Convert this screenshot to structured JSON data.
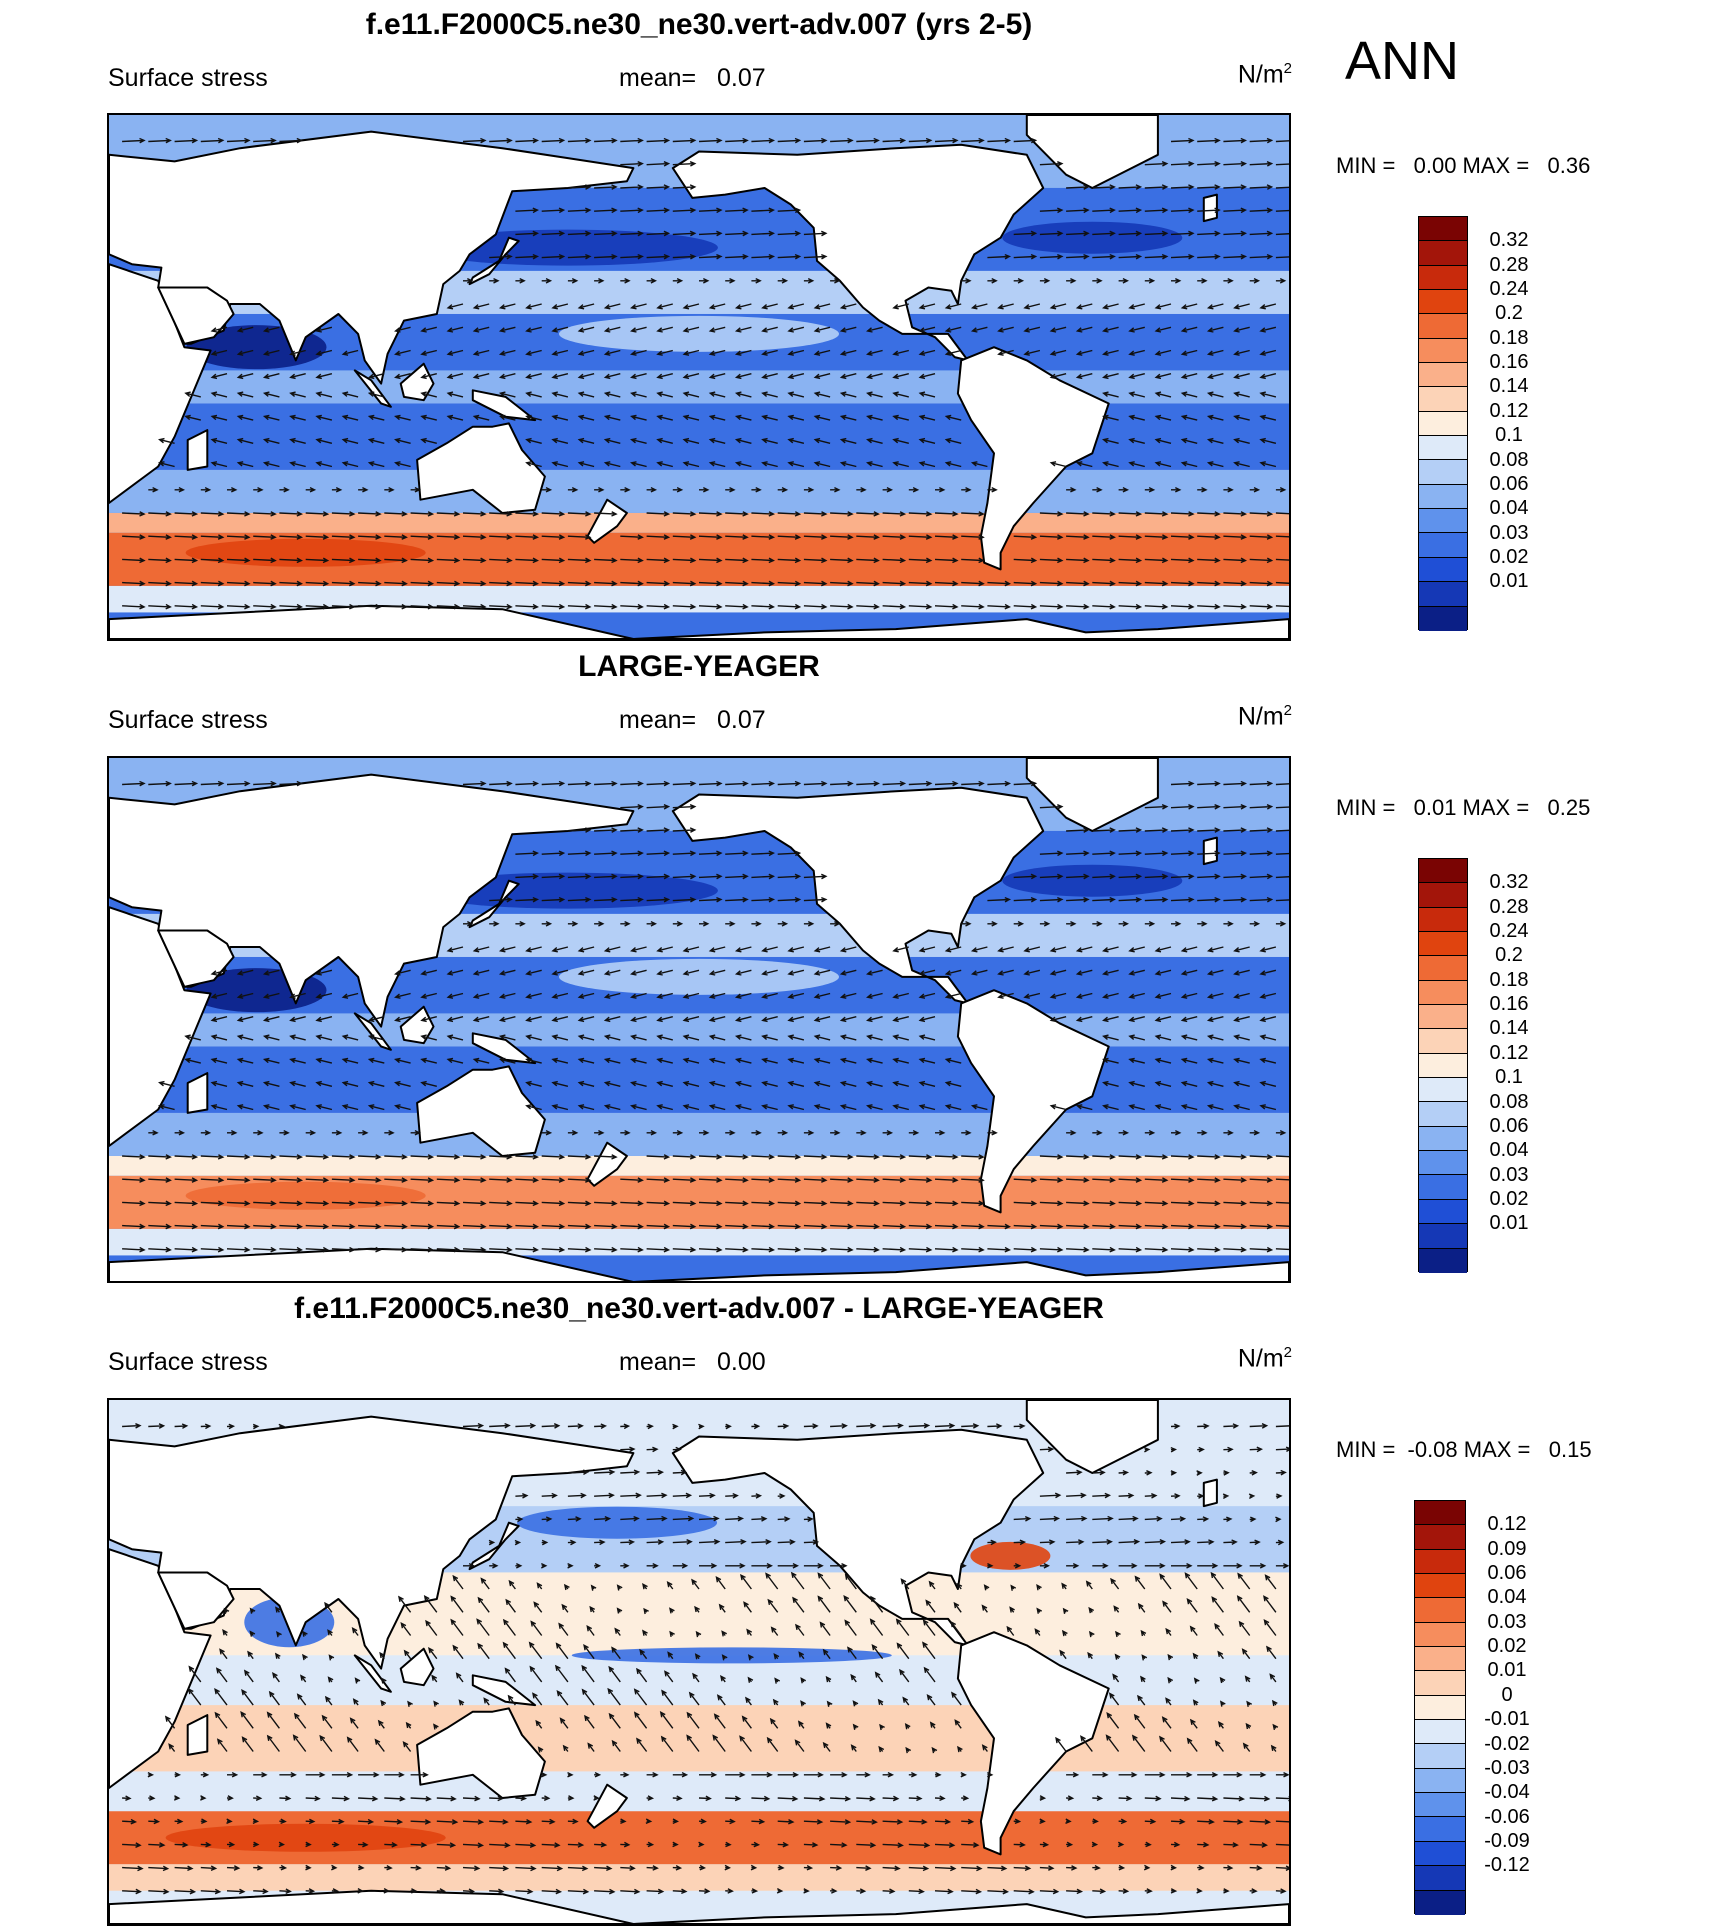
{
  "season": "ANN",
  "panels": [
    {
      "id": "model",
      "title": "f.e11.F2000C5.ne30_ne30.vert-adv.007 (yrs 2-5)",
      "left_label": "Surface stress",
      "mean_text": "mean=   0.07",
      "units_base": "N/m",
      "units_exp": "2",
      "minmax_text": "MIN =   0.00 MAX =   0.36",
      "colorbar": {
        "labels": [
          "0.32",
          "0.28",
          "0.24",
          "0.2",
          "0.18",
          "0.16",
          "0.14",
          "0.12",
          "0.1",
          "0.08",
          "0.06",
          "0.04",
          "0.03",
          "0.02",
          "0.01"
        ],
        "colors": [
          "#7a0403",
          "#a3150a",
          "#c82a0c",
          "#e0440f",
          "#ee6a35",
          "#f68d5d",
          "#fab08a",
          "#fcd3b7",
          "#fdeede",
          "#deeaf9",
          "#b4cff6",
          "#8ab3f2",
          "#5f92ec",
          "#3a6fe3",
          "#1f4fd6",
          "#1538b6",
          "#0b1f86"
        ]
      }
    },
    {
      "id": "obs",
      "title": "LARGE-YEAGER",
      "left_label": "Surface stress",
      "mean_text": "mean=   0.07",
      "units_base": "N/m",
      "units_exp": "2",
      "minmax_text": "MIN =   0.01 MAX =   0.25",
      "colorbar": {
        "labels": [
          "0.32",
          "0.28",
          "0.24",
          "0.2",
          "0.18",
          "0.16",
          "0.14",
          "0.12",
          "0.1",
          "0.08",
          "0.06",
          "0.04",
          "0.03",
          "0.02",
          "0.01"
        ],
        "colors": [
          "#7a0403",
          "#a3150a",
          "#c82a0c",
          "#e0440f",
          "#ee6a35",
          "#f68d5d",
          "#fab08a",
          "#fcd3b7",
          "#fdeede",
          "#deeaf9",
          "#b4cff6",
          "#8ab3f2",
          "#5f92ec",
          "#3a6fe3",
          "#1f4fd6",
          "#1538b6",
          "#0b1f86"
        ]
      }
    },
    {
      "id": "diff",
      "title": "f.e11.F2000C5.ne30_ne30.vert-adv.007 - LARGE-YEAGER",
      "left_label": "Surface stress",
      "mean_text": "mean=   0.00",
      "units_base": "N/m",
      "units_exp": "2",
      "minmax_text": "MIN =  -0.08 MAX =   0.15",
      "colorbar": {
        "labels": [
          "0.12",
          "0.09",
          "0.06",
          "0.04",
          "0.03",
          "0.02",
          "0.01",
          "0",
          "-0.01",
          "-0.02",
          "-0.03",
          "-0.04",
          "-0.06",
          "-0.09",
          "-0.12"
        ],
        "colors": [
          "#7a0403",
          "#a3150a",
          "#c82a0c",
          "#e0440f",
          "#ee6a35",
          "#f68d5d",
          "#fab08a",
          "#fcd3b7",
          "#fdeede",
          "#deeaf9",
          "#b4cff6",
          "#8ab3f2",
          "#5f92ec",
          "#3a6fe3",
          "#1f4fd6",
          "#1538b6",
          "#0b1f86"
        ]
      }
    }
  ],
  "chart_data": [
    {
      "type": "heatmap",
      "title": "f.e11.F2000C5.ne30_ne30.vert-adv.007 (yrs 2-5)",
      "variable": "Surface stress",
      "units": "N/m^2",
      "season": "ANN",
      "mean": 0.07,
      "min": 0.0,
      "max": 0.36,
      "contour_levels": [
        0.01,
        0.02,
        0.03,
        0.04,
        0.06,
        0.08,
        0.1,
        0.12,
        0.14,
        0.16,
        0.18,
        0.2,
        0.24,
        0.28,
        0.32
      ],
      "overlay": "wind stress vectors"
    },
    {
      "type": "heatmap",
      "title": "LARGE-YEAGER",
      "variable": "Surface stress",
      "units": "N/m^2",
      "season": "ANN",
      "mean": 0.07,
      "min": 0.01,
      "max": 0.25,
      "contour_levels": [
        0.01,
        0.02,
        0.03,
        0.04,
        0.06,
        0.08,
        0.1,
        0.12,
        0.14,
        0.16,
        0.18,
        0.2,
        0.24,
        0.28,
        0.32
      ],
      "overlay": "wind stress vectors"
    },
    {
      "type": "heatmap",
      "title": "f.e11.F2000C5.ne30_ne30.vert-adv.007 - LARGE-YEAGER",
      "variable": "Surface stress",
      "units": "N/m^2",
      "season": "ANN",
      "mean": 0.0,
      "min": -0.08,
      "max": 0.15,
      "contour_levels": [
        -0.12,
        -0.09,
        -0.06,
        -0.04,
        -0.03,
        -0.02,
        -0.01,
        0,
        0.01,
        0.02,
        0.03,
        0.04,
        0.06,
        0.09,
        0.12
      ],
      "overlay": "wind stress difference vectors"
    }
  ]
}
